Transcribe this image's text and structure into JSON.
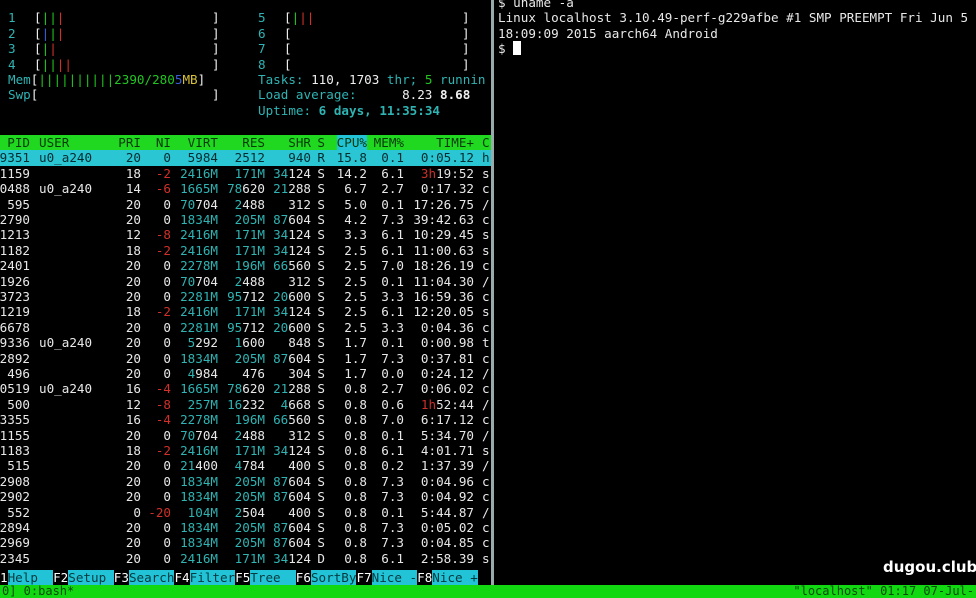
{
  "htop": {
    "cpu_meters_left": [
      {
        "label": "1",
        "bars": [
          "green",
          "green",
          "red"
        ]
      },
      {
        "label": "2",
        "bars": [
          "blue",
          "green",
          "red"
        ]
      },
      {
        "label": "3",
        "bars": [
          "green",
          "red"
        ]
      },
      {
        "label": "4",
        "bars": [
          "green",
          "green",
          "red",
          "red"
        ]
      }
    ],
    "cpu_meters_right": [
      {
        "label": "5",
        "bars": [
          "green",
          "red",
          "red"
        ]
      },
      {
        "label": "6",
        "bars": []
      },
      {
        "label": "7",
        "bars": []
      },
      {
        "label": "8",
        "bars": []
      }
    ],
    "mem": {
      "label": "Mem",
      "bars": 10,
      "used_text": "2390/280",
      "buffer_text": "5",
      "cache_text": "MB"
    },
    "swap": {
      "label": "Swp"
    },
    "tasks": {
      "label": "Tasks:",
      "count": "110,",
      "threads": "1703",
      "thr_label": "thr;",
      "running": "5",
      "running_label": "runnin"
    },
    "load": {
      "label": "Load average:",
      "values": "8.23",
      "value2": "8.68"
    },
    "uptime": {
      "label": "Uptime:",
      "value": "6 days, 11:35:34"
    },
    "columns": [
      "PID",
      "USER",
      "PRI",
      "NI",
      "VIRT",
      "RES",
      "SHR",
      "S",
      "CPU%",
      "MEM%",
      "TIME+",
      "C"
    ],
    "sort_column": "CPU%",
    "rows": [
      [
        "9351",
        "u0_a240",
        "20",
        "0",
        "5984",
        "2512",
        "940",
        "R",
        "15.8",
        "0.1",
        "0:05.12",
        "h"
      ],
      [
        "1159",
        "",
        "18",
        "-2",
        "2416M",
        "171M",
        "34124",
        "S",
        "14.2",
        "6.1",
        "3h19:52",
        "s"
      ],
      [
        "0488",
        "u0_a240",
        "14",
        "-6",
        "1665M",
        "78620",
        "21288",
        "S",
        "6.7",
        "2.7",
        "0:17.32",
        "c"
      ],
      [
        "595",
        "",
        "20",
        "0",
        "70704",
        "2488",
        "312",
        "S",
        "5.0",
        "0.1",
        "17:26.75",
        "/"
      ],
      [
        "2790",
        "",
        "20",
        "0",
        "1834M",
        "205M",
        "87604",
        "S",
        "4.2",
        "7.3",
        "39:42.63",
        "c"
      ],
      [
        "1213",
        "",
        "12",
        "-8",
        "2416M",
        "171M",
        "34124",
        "S",
        "3.3",
        "6.1",
        "10:29.45",
        "s"
      ],
      [
        "1182",
        "",
        "18",
        "-2",
        "2416M",
        "171M",
        "34124",
        "S",
        "2.5",
        "6.1",
        "11:00.63",
        "s"
      ],
      [
        "2401",
        "",
        "20",
        "0",
        "2278M",
        "196M",
        "66560",
        "S",
        "2.5",
        "7.0",
        "18:26.19",
        "c"
      ],
      [
        "1926",
        "",
        "20",
        "0",
        "70704",
        "2488",
        "312",
        "S",
        "2.5",
        "0.1",
        "11:04.30",
        "/"
      ],
      [
        "3723",
        "",
        "20",
        "0",
        "2281M",
        "95712",
        "20600",
        "S",
        "2.5",
        "3.3",
        "16:59.36",
        "c"
      ],
      [
        "1219",
        "",
        "18",
        "-2",
        "2416M",
        "171M",
        "34124",
        "S",
        "2.5",
        "6.1",
        "12:20.05",
        "s"
      ],
      [
        "6678",
        "",
        "20",
        "0",
        "2281M",
        "95712",
        "20600",
        "S",
        "2.5",
        "3.3",
        "0:04.36",
        "c"
      ],
      [
        "9336",
        "u0_a240",
        "20",
        "0",
        "5292",
        "1600",
        "848",
        "S",
        "1.7",
        "0.1",
        "0:00.98",
        "t"
      ],
      [
        "2892",
        "",
        "20",
        "0",
        "1834M",
        "205M",
        "87604",
        "S",
        "1.7",
        "7.3",
        "0:37.81",
        "c"
      ],
      [
        "496",
        "",
        "20",
        "0",
        "4984",
        "476",
        "304",
        "S",
        "1.7",
        "0.0",
        "0:24.12",
        "/"
      ],
      [
        "0519",
        "u0_a240",
        "16",
        "-4",
        "1665M",
        "78620",
        "21288",
        "S",
        "0.8",
        "2.7",
        "0:06.02",
        "c"
      ],
      [
        "500",
        "",
        "12",
        "-8",
        "257M",
        "16232",
        "4668",
        "S",
        "0.8",
        "0.6",
        "1h52:44",
        "/"
      ],
      [
        "3355",
        "",
        "16",
        "-4",
        "2278M",
        "196M",
        "66560",
        "S",
        "0.8",
        "7.0",
        "6:17.12",
        "c"
      ],
      [
        "1155",
        "",
        "20",
        "0",
        "70704",
        "2488",
        "312",
        "S",
        "0.8",
        "0.1",
        "5:34.70",
        "/"
      ],
      [
        "1183",
        "",
        "18",
        "-2",
        "2416M",
        "171M",
        "34124",
        "S",
        "0.8",
        "6.1",
        "4:01.71",
        "s"
      ],
      [
        "515",
        "",
        "20",
        "0",
        "21400",
        "4784",
        "400",
        "S",
        "0.8",
        "0.2",
        "1:37.39",
        "/"
      ],
      [
        "2908",
        "",
        "20",
        "0",
        "1834M",
        "205M",
        "87604",
        "S",
        "0.8",
        "7.3",
        "0:04.96",
        "c"
      ],
      [
        "2902",
        "",
        "20",
        "0",
        "1834M",
        "205M",
        "87604",
        "S",
        "0.8",
        "7.3",
        "0:04.92",
        "c"
      ],
      [
        "552",
        "",
        "0",
        "-20",
        "104M",
        "2504",
        "400",
        "S",
        "0.8",
        "0.1",
        "5:44.87",
        "/"
      ],
      [
        "2894",
        "",
        "20",
        "0",
        "1834M",
        "205M",
        "87604",
        "S",
        "0.8",
        "7.3",
        "0:05.02",
        "c"
      ],
      [
        "2969",
        "",
        "20",
        "0",
        "1834M",
        "205M",
        "87604",
        "S",
        "0.8",
        "7.3",
        "0:04.85",
        "c"
      ],
      [
        "2345",
        "",
        "20",
        "0",
        "2416M",
        "171M",
        "34124",
        "D",
        "0.8",
        "6.1",
        "2:58.39",
        "s"
      ]
    ],
    "function_keys": [
      {
        "key": "1",
        "label": "Help  "
      },
      {
        "key": "F2",
        "label": "Setup "
      },
      {
        "key": "F3",
        "label": "Search"
      },
      {
        "key": "F4",
        "label": "Filter"
      },
      {
        "key": "F5",
        "label": "Tree  "
      },
      {
        "key": "F6",
        "label": "SortBy"
      },
      {
        "key": "F7",
        "label": "Nice -"
      },
      {
        "key": "F8",
        "label": "Nice +"
      }
    ]
  },
  "terminal": {
    "lines": [
      "$ uname -a",
      "Linux localhost 3.10.49-perf-g229afbe #1 SMP PREEMPT Fri Jun 5",
      "18:09:09 2015 aarch64 Android"
    ],
    "prompt": "$ "
  },
  "status_bar": {
    "left": "0] 0:bash*",
    "right": "\"localhost\" 01:17 07-Jul-"
  },
  "watermark": "dugou.club",
  "colors": {
    "header_bg": "#1fd81f",
    "selected_bg": "#2bc6d3",
    "teal": "#2fb3b3",
    "red": "#d0302a",
    "status_bg": "#12d812"
  }
}
